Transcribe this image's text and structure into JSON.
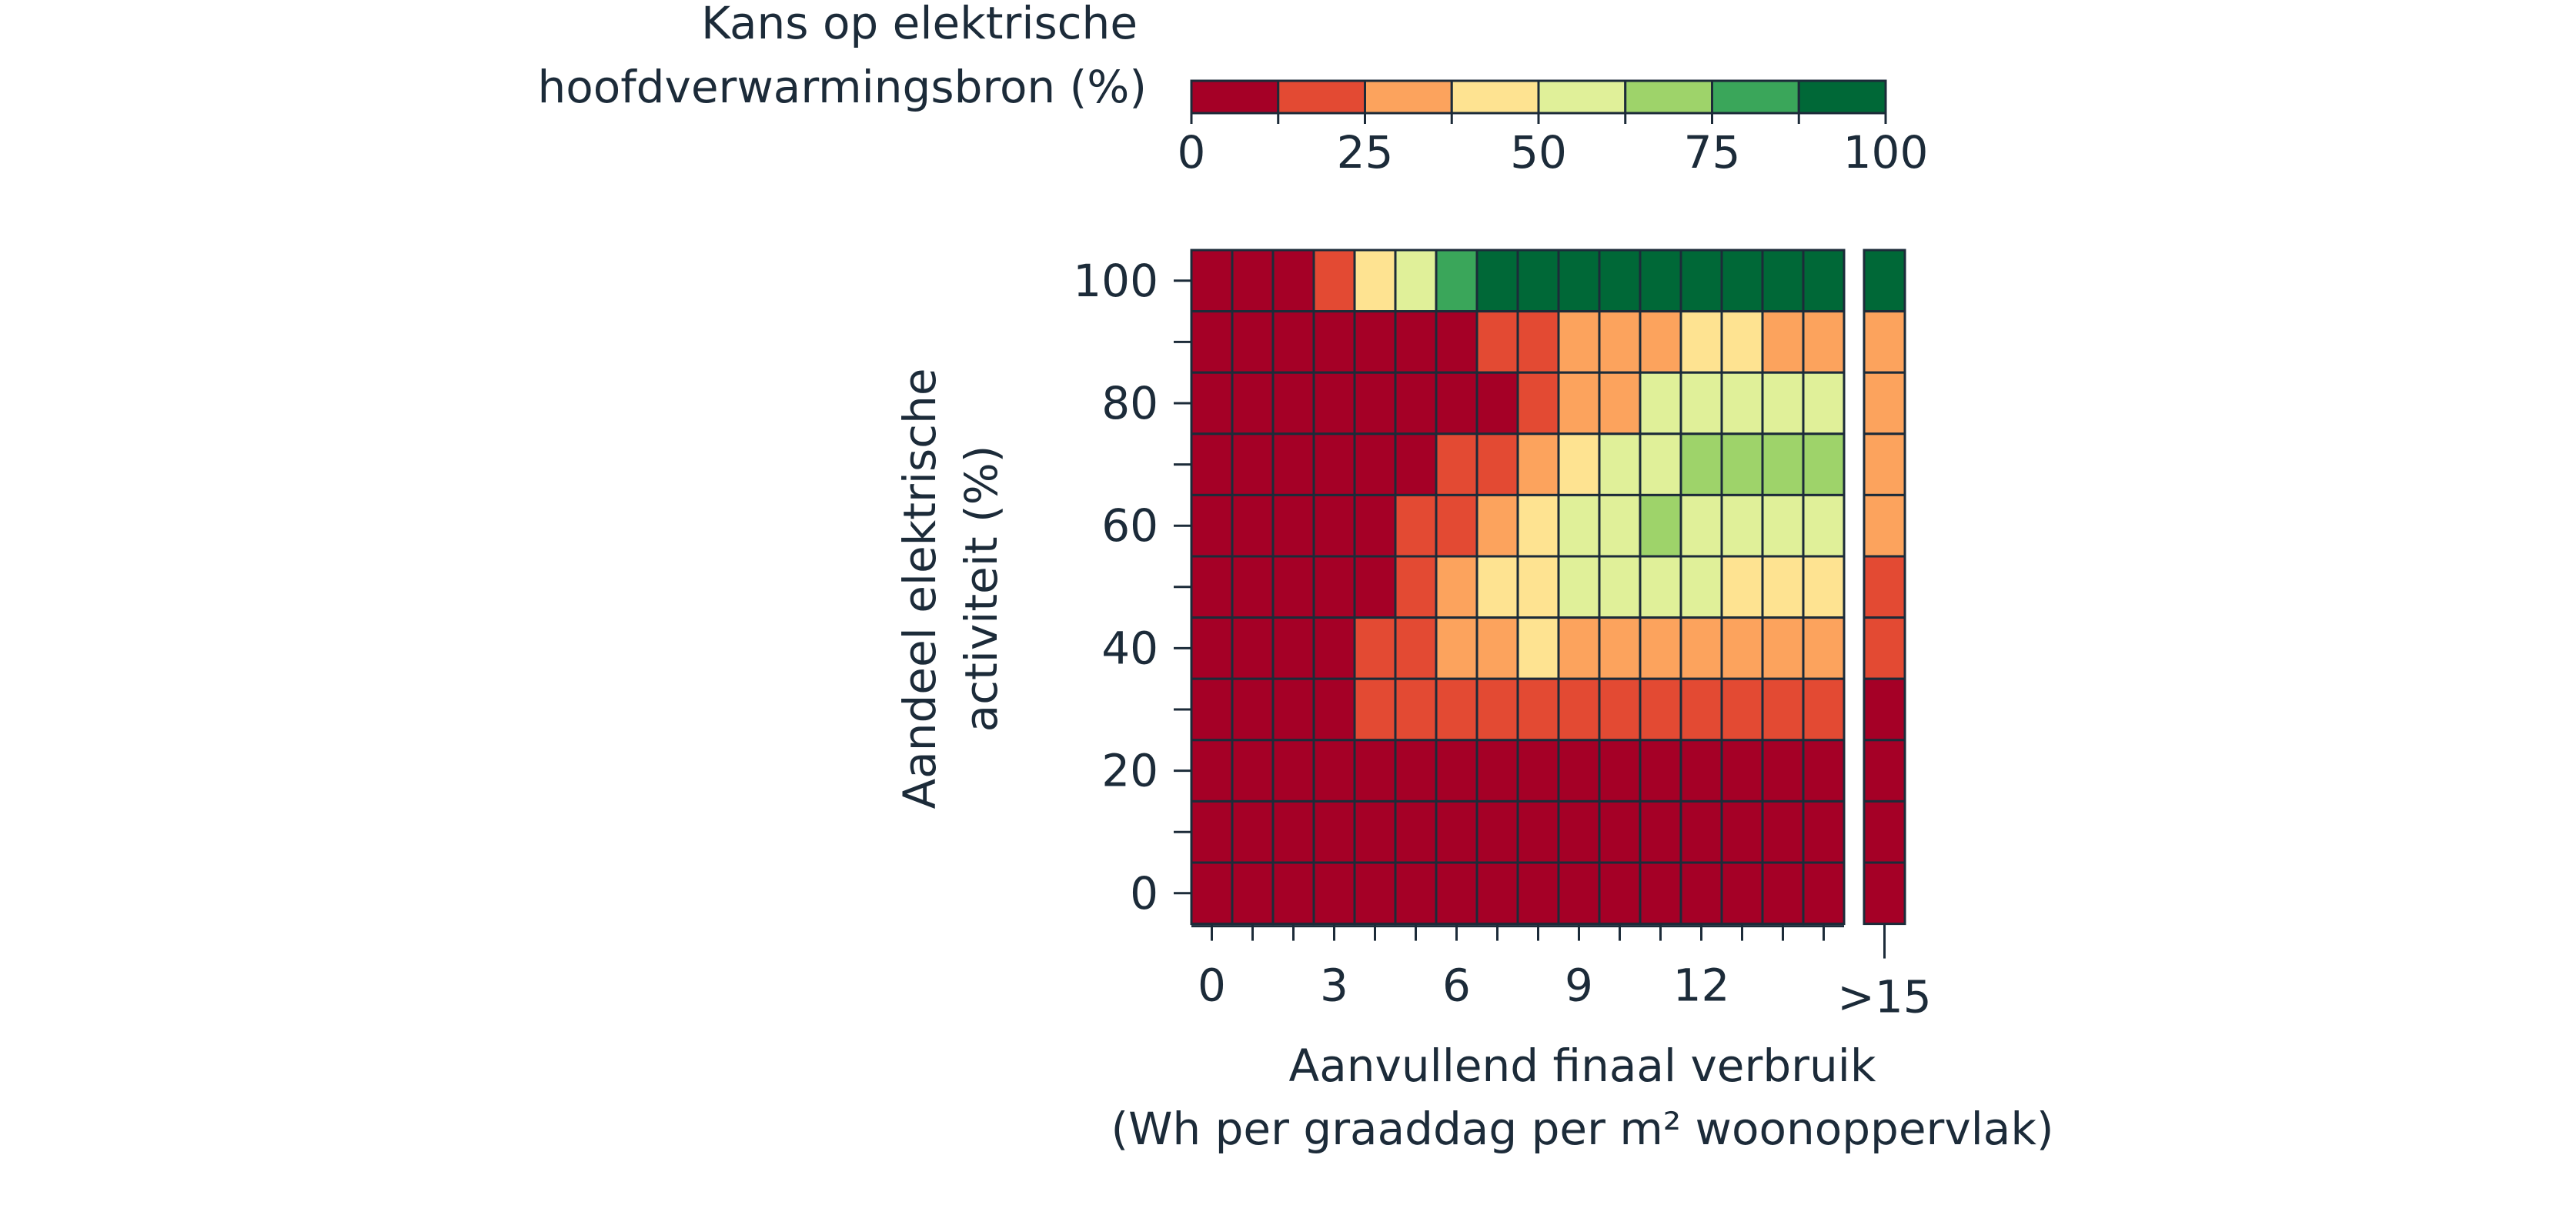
{
  "chart_data": {
    "type": "heatmap",
    "title": "",
    "legend": {
      "title_lines": [
        "Kans op elektrische",
        "hoofdverwarmingsbron (%)"
      ],
      "colors": [
        "#a50026",
        "#e34a33",
        "#fca35d",
        "#fee391",
        "#e0f099",
        "#9ed36a",
        "#3aa65a",
        "#006837"
      ],
      "bins": [
        0,
        12.5,
        25,
        37.5,
        50,
        62.5,
        75,
        87.5,
        100
      ],
      "tick_labels": [
        "0",
        "25",
        "50",
        "75",
        "100"
      ],
      "tick_values": [
        0,
        25,
        50,
        75,
        100
      ]
    },
    "xlabel_lines": [
      "Aanvullend finaal verbruik",
      "(Wh per graaddag per m² woonoppervlak)"
    ],
    "ylabel_lines": [
      "Aandeel elektrische",
      "activiteit (%)"
    ],
    "x_tick_labels": [
      "0",
      "3",
      "6",
      "9",
      "12"
    ],
    "x_tick_values": [
      0,
      3,
      6,
      9,
      12
    ],
    "x_extra_label": ">15",
    "y_tick_labels": [
      "0",
      "20",
      "40",
      "60",
      "80",
      "100"
    ],
    "y_tick_values": [
      0,
      20,
      40,
      60,
      80,
      100
    ],
    "x_bins": [
      0,
      1,
      2,
      3,
      4,
      5,
      6,
      7,
      8,
      9,
      10,
      11,
      12,
      13,
      14,
      15,
      ">15"
    ],
    "y_bins": [
      0,
      10,
      20,
      30,
      40,
      50,
      60,
      70,
      80,
      90,
      100
    ],
    "matrix": [
      [
        0,
        0,
        0,
        1,
        3,
        4,
        6,
        7,
        7,
        7,
        7,
        7,
        7,
        7,
        7,
        7,
        7
      ],
      [
        0,
        0,
        0,
        0,
        0,
        0,
        0,
        1,
        1,
        2,
        2,
        2,
        3,
        3,
        2,
        2,
        2
      ],
      [
        0,
        0,
        0,
        0,
        0,
        0,
        0,
        0,
        1,
        2,
        2,
        4,
        4,
        4,
        4,
        4,
        2
      ],
      [
        0,
        0,
        0,
        0,
        0,
        0,
        1,
        1,
        2,
        3,
        4,
        4,
        5,
        5,
        5,
        5,
        2
      ],
      [
        0,
        0,
        0,
        0,
        0,
        1,
        1,
        2,
        3,
        4,
        4,
        5,
        4,
        4,
        4,
        4,
        2
      ],
      [
        0,
        0,
        0,
        0,
        0,
        1,
        2,
        3,
        3,
        4,
        4,
        4,
        4,
        3,
        3,
        3,
        1
      ],
      [
        0,
        0,
        0,
        0,
        1,
        1,
        2,
        2,
        3,
        2,
        2,
        2,
        2,
        2,
        2,
        2,
        1
      ],
      [
        0,
        0,
        0,
        0,
        1,
        1,
        1,
        1,
        1,
        1,
        1,
        1,
        1,
        1,
        1,
        1,
        0
      ],
      [
        0,
        0,
        0,
        0,
        0,
        0,
        0,
        0,
        0,
        0,
        0,
        0,
        0,
        0,
        0,
        0,
        0
      ],
      [
        0,
        0,
        0,
        0,
        0,
        0,
        0,
        0,
        0,
        0,
        0,
        0,
        0,
        0,
        0,
        0,
        0
      ],
      [
        0,
        0,
        0,
        0,
        0,
        0,
        0,
        0,
        0,
        0,
        0,
        0,
        0,
        0,
        0,
        0,
        0
      ]
    ],
    "matrix_row_order": "top-to-bottom (y = 100 first)",
    "value_encoding": "each cell holds the index of the legend color bin"
  }
}
